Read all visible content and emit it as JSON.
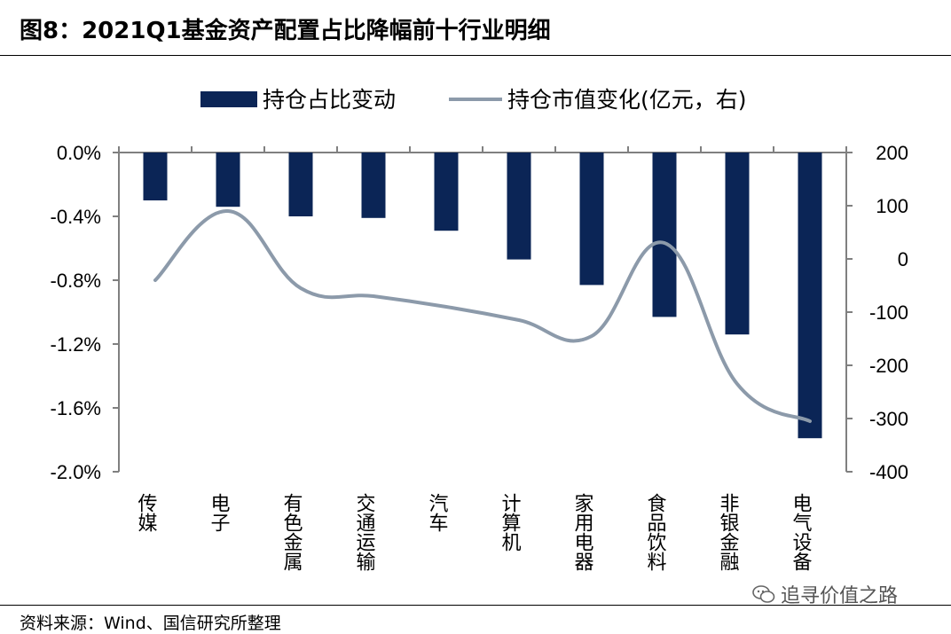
{
  "figure": {
    "title": "图8：2021Q1基金资产配置占比降幅前十行业明细",
    "source": "资料来源：Wind、国信研究所整理",
    "watermark": "追寻价值之路"
  },
  "chart_data": {
    "type": "bar",
    "categories": [
      "传媒",
      "电子",
      "有色金属",
      "交通运输",
      "汽车",
      "计算机",
      "家用电器",
      "食品饮料",
      "非银金融",
      "电气设备"
    ],
    "series": [
      {
        "name": "持仓占比变动",
        "type": "bar",
        "axis": "left",
        "unit": "%",
        "color": "#0b2556",
        "values": [
          -0.3,
          -0.34,
          -0.4,
          -0.41,
          -0.49,
          -0.67,
          -0.83,
          -1.03,
          -1.14,
          -1.79
        ]
      },
      {
        "name": "持仓市值变化(亿元，右)",
        "type": "line",
        "axis": "right",
        "unit": "亿元",
        "color": "#8c9aaa",
        "values": [
          -40,
          90,
          -55,
          -70,
          -90,
          -115,
          -145,
          30,
          -235,
          -305
        ]
      }
    ],
    "left_axis": {
      "ylim": [
        -2.0,
        0.0
      ],
      "ticks": [
        "0.0%",
        "-0.4%",
        "-0.8%",
        "-1.2%",
        "-1.6%",
        "-2.0%"
      ],
      "tick_values": [
        0.0,
        -0.4,
        -0.8,
        -1.2,
        -1.6,
        -2.0
      ]
    },
    "right_axis": {
      "ylim": [
        -400,
        200
      ],
      "ticks": [
        "200",
        "100",
        "0",
        "-100",
        "-200",
        "-300",
        "-400"
      ],
      "tick_values": [
        200,
        100,
        0,
        -100,
        -200,
        -300,
        -400
      ]
    },
    "legend": "top-center",
    "grid": false
  }
}
